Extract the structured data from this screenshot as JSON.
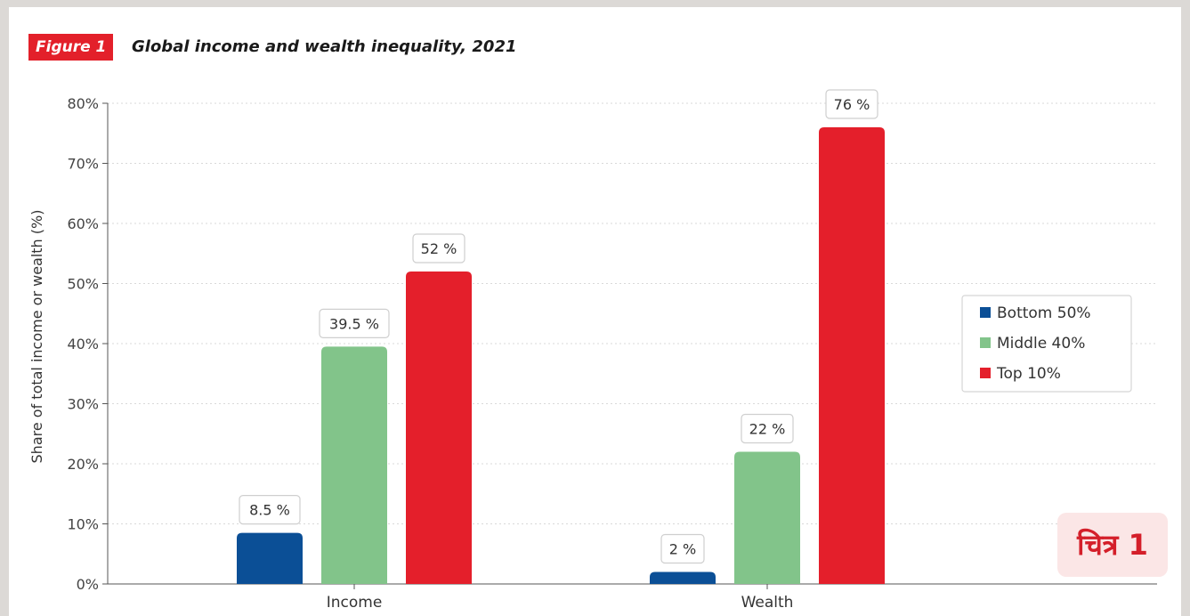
{
  "figure": {
    "badge": "Figure 1",
    "title": "Global income and wealth inequality, 2021",
    "stamp": "चित्र 1"
  },
  "chart_data": {
    "type": "bar",
    "categories": [
      "Income",
      "Wealth"
    ],
    "series": [
      {
        "name": "Bottom 50%",
        "values": [
          8.5,
          2
        ],
        "labels": [
          "8.5 %",
          "2 %"
        ],
        "color": "#0b4f96"
      },
      {
        "name": "Middle 40%",
        "values": [
          39.5,
          22
        ],
        "labels": [
          "39.5 %",
          "22 %"
        ],
        "color": "#82c48a"
      },
      {
        "name": "Top 10%",
        "values": [
          52,
          76
        ],
        "labels": [
          "52 %",
          "76 %"
        ],
        "color": "#e41f2b"
      }
    ],
    "ylabel": "Share of total income or wealth (%)",
    "xlabel": "",
    "ylim": [
      0,
      80
    ],
    "yticks": [
      0,
      10,
      20,
      30,
      40,
      50,
      60,
      70,
      80
    ],
    "ytick_labels": [
      "0%",
      "10%",
      "20%",
      "30%",
      "40%",
      "50%",
      "60%",
      "70%",
      "80%"
    ],
    "grid": true,
    "legend_position": "right"
  }
}
